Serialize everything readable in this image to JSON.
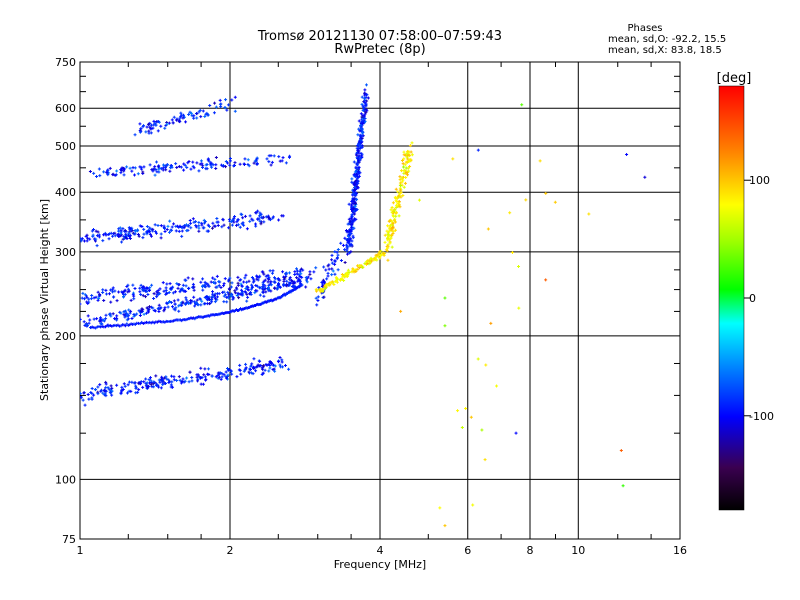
{
  "chart_data": {
    "type": "scatter",
    "title": "Tromsø 20121130 07:58:00–07:59:43",
    "subtitle": "RwPretec (8p)",
    "xlabel": "Frequency [MHz]",
    "ylabel": "Stationary phase Virtual Height [km]",
    "x_scale": "log2",
    "y_scale": "log",
    "xlim": [
      1,
      16
    ],
    "ylim": [
      75,
      750
    ],
    "x_ticks": [
      1,
      2,
      4,
      6,
      8,
      10,
      16
    ],
    "x_tick_labels": [
      "1",
      "2",
      "4",
      "6",
      "8",
      "10",
      "16"
    ],
    "y_ticks": [
      75,
      100,
      200,
      300,
      400,
      500,
      600,
      750
    ],
    "y_tick_labels": [
      "75",
      "100",
      "200",
      "300",
      "400",
      "500",
      "600",
      "750"
    ],
    "grid": true,
    "phases_header": "Phases",
    "phases_o": "mean, sd,O: -92.2, 15.5",
    "phases_x": "mean, sd,X:  83.8, 18.5",
    "colorbar": {
      "label": "[deg]",
      "range": [
        -180,
        180
      ],
      "ticks": [
        100,
        0,
        -100
      ],
      "tick_labels": [
        "100",
        "0",
        "-100"
      ]
    },
    "series": [
      {
        "mode": "O",
        "phase_deg": -92.2,
        "traces": [
          {
            "f0": 1.0,
            "f1": 2.8,
            "h0": 212,
            "h1": 260,
            "sf": 0.08,
            "sh": 0.04,
            "n": 300
          },
          {
            "f0": 1.0,
            "f1": 2.9,
            "h0": 240,
            "h1": 270,
            "sf": 0.08,
            "sh": 0.05,
            "n": 260
          },
          {
            "f0": 1.0,
            "f1": 2.5,
            "h0": 320,
            "h1": 355,
            "sf": 0.08,
            "sh": 0.05,
            "n": 240
          },
          {
            "f0": 1.1,
            "f1": 2.6,
            "h0": 440,
            "h1": 470,
            "sf": 0.08,
            "sh": 0.04,
            "n": 150
          },
          {
            "f0": 1.3,
            "f1": 2.0,
            "h0": 540,
            "h1": 610,
            "sf": 0.06,
            "sh": 0.05,
            "n": 90
          },
          {
            "f0": 1.0,
            "f1": 2.6,
            "h0": 150,
            "h1": 175,
            "sf": 0.06,
            "sh": 0.05,
            "n": 260
          },
          {
            "f0": 3.45,
            "f1": 3.75,
            "h0": 300,
            "h1": 640,
            "sf": 0.02,
            "sh": 0.08,
            "n": 320
          },
          {
            "f0": 3.0,
            "f1": 3.5,
            "h0": 240,
            "h1": 330,
            "sf": 0.04,
            "sh": 0.05,
            "n": 60
          }
        ]
      },
      {
        "mode": "X",
        "phase_deg": 83.8,
        "traces": [
          {
            "f0": 3.0,
            "f1": 4.1,
            "h0": 248,
            "h1": 300,
            "sf": 0.02,
            "sh": 0.02,
            "n": 120
          },
          {
            "f0": 4.1,
            "f1": 4.6,
            "h0": 300,
            "h1": 500,
            "sf": 0.03,
            "sh": 0.06,
            "n": 160
          },
          {
            "f0": 5.5,
            "f1": 9.0,
            "h0": 80,
            "h1": 560,
            "sf": 0.2,
            "sh": 0.3,
            "n": 18
          }
        ]
      }
    ],
    "lead_edge": {
      "f": [
        1.05,
        1.3,
        1.6,
        1.9,
        2.2,
        2.5,
        2.8
      ],
      "h": [
        208,
        212,
        216,
        222,
        230,
        240,
        256
      ]
    },
    "scattered": [
      {
        "f": 12.5,
        "h": 480,
        "p": -100
      },
      {
        "f": 13.6,
        "h": 430,
        "p": -110
      },
      {
        "f": 8.6,
        "h": 262,
        "p": 140
      },
      {
        "f": 7.7,
        "h": 610,
        "p": 30
      },
      {
        "f": 10.5,
        "h": 360,
        "p": 90
      },
      {
        "f": 6.6,
        "h": 335,
        "p": 100
      },
      {
        "f": 7.5,
        "h": 125,
        "p": -100
      },
      {
        "f": 12.2,
        "h": 115,
        "p": 140
      },
      {
        "f": 12.3,
        "h": 97,
        "p": 20
      },
      {
        "f": 6.3,
        "h": 490,
        "p": -90
      },
      {
        "f": 5.4,
        "h": 240,
        "p": 30
      },
      {
        "f": 5.4,
        "h": 210,
        "p": 40
      },
      {
        "f": 4.4,
        "h": 225,
        "p": 110
      },
      {
        "f": 4.8,
        "h": 385,
        "p": 70
      },
      {
        "f": 5.6,
        "h": 470,
        "p": 90
      },
      {
        "f": 5.4,
        "h": 80,
        "p": 100
      },
      {
        "f": 6.5,
        "h": 110,
        "p": 90
      },
      {
        "f": 6.1,
        "h": 135,
        "p": 100
      }
    ]
  }
}
